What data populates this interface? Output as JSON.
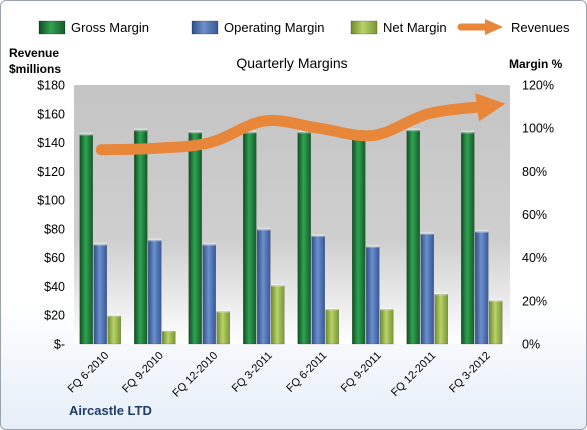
{
  "chart_data": {
    "type": "bar",
    "title": "Quarterly Margins",
    "company": "Aircastle LTD",
    "ylabel_left": [
      "Revenue",
      "$millions"
    ],
    "ylabel_right": "Margin %",
    "ylim_left": [
      0,
      180
    ],
    "ylim_right": [
      0,
      120
    ],
    "yticks_left": [
      "$-",
      "$20",
      "$40",
      "$60",
      "$80",
      "$100",
      "$120",
      "$140",
      "$160",
      "$180"
    ],
    "yticks_right": [
      "0%",
      "20%",
      "40%",
      "60%",
      "80%",
      "100%",
      "120%"
    ],
    "categories": [
      "FQ 6-2010",
      "FQ 9-2010",
      "FQ 12-2010",
      "FQ 3-2011",
      "FQ 6-2011",
      "FQ 9-2011",
      "FQ 12-2011",
      "FQ 3-2012"
    ],
    "series": [
      {
        "name": "Gross Margin",
        "axis": "right",
        "color": "#1f7a3a",
        "values": [
          97,
          99,
          98,
          98,
          98,
          97,
          99,
          98
        ]
      },
      {
        "name": "Operating Margin",
        "axis": "right",
        "color": "#4a6fb0",
        "values": [
          46,
          48,
          46,
          53,
          50,
          45,
          51,
          52
        ]
      },
      {
        "name": "Net Margin",
        "axis": "right",
        "color": "#9cb84a",
        "values": [
          13,
          6,
          15,
          27,
          16,
          16,
          23,
          20
        ]
      },
      {
        "name": "Revenues",
        "axis": "left",
        "type": "line",
        "color": "#e8863a",
        "values": [
          135,
          136,
          140,
          155,
          150,
          145,
          160,
          165
        ]
      }
    ],
    "legend_position": "top",
    "grid": false
  }
}
